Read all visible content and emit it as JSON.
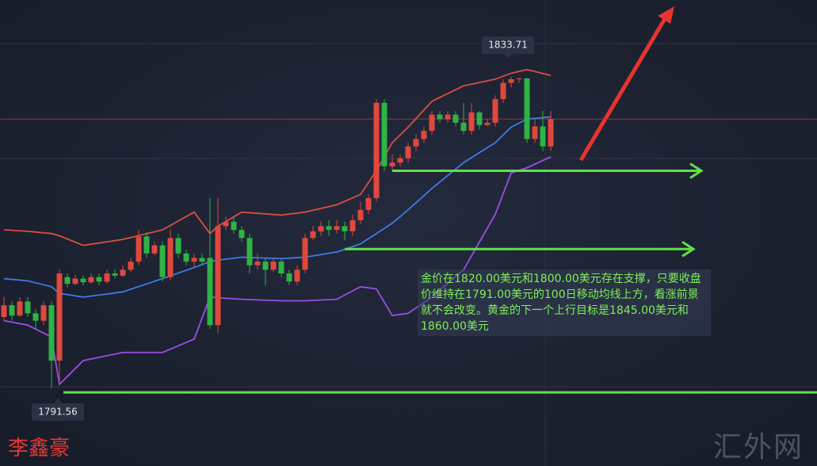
{
  "chart_data": {
    "type": "candlestick",
    "up_color": "#e0483e",
    "down_color": "#2fb344",
    "ylim": [
      1781.03,
      1844.12
    ],
    "open": [
      1801.2,
      1802.8,
      1801.4,
      1803.3,
      1801.7,
      1800.7,
      1802.8,
      1795.3,
      1806.6,
      1805.7,
      1806.4,
      1805.9,
      1806.6,
      1806.0,
      1807.1,
      1806.8,
      1807.6,
      1808.7,
      1812.1,
      1809.8,
      1810.9,
      1806.6,
      1811.9,
      1809.8,
      1808.7,
      1809.2,
      1809.2,
      1800.1,
      1813.5,
      1814.1,
      1813.0,
      1811.9,
      1808.2,
      1808.7,
      1807.6,
      1808.7,
      1807.1,
      1806.0,
      1807.6,
      1811.9,
      1812.8,
      1813.5,
      1813.0,
      1813.5,
      1812.8,
      1814.3,
      1815.7,
      1817.3,
      1830.2,
      1821.6,
      1822.1,
      1822.7,
      1824.3,
      1825.3,
      1826.4,
      1828.6,
      1828.0,
      1828.6,
      1827.5,
      1826.4,
      1828.9,
      1827.2,
      1827.5,
      1830.7,
      1832.9,
      1833.4,
      1833.5,
      1825.3,
      1827.0,
      1824.3
    ],
    "high": [
      1803.9,
      1803.3,
      1803.9,
      1803.9,
      1802.3,
      1803.3,
      1803.3,
      1807.6,
      1807.1,
      1806.9,
      1806.8,
      1807.1,
      1807.1,
      1807.6,
      1807.6,
      1808.2,
      1809.2,
      1813.0,
      1812.7,
      1811.4,
      1811.4,
      1813.0,
      1812.5,
      1810.3,
      1809.8,
      1809.8,
      1817.3,
      1817.3,
      1814.8,
      1814.8,
      1813.5,
      1812.5,
      1809.8,
      1809.2,
      1809.2,
      1809.2,
      1807.6,
      1808.2,
      1812.5,
      1813.5,
      1814.1,
      1814.3,
      1814.3,
      1814.1,
      1815.1,
      1816.8,
      1817.8,
      1830.7,
      1830.7,
      1823.2,
      1823.2,
      1824.8,
      1825.9,
      1827.0,
      1829.1,
      1829.1,
      1829.1,
      1829.1,
      1830.2,
      1830.2,
      1829.1,
      1828.0,
      1831.2,
      1833.4,
      1833.71,
      1833.6,
      1833.6,
      1828.0,
      1829.1,
      1829.1
    ],
    "low": [
      1800.7,
      1800.7,
      1801.2,
      1801.2,
      1799.6,
      1800.1,
      1791.56,
      1792.1,
      1805.2,
      1805.5,
      1805.5,
      1805.7,
      1805.5,
      1805.7,
      1806.4,
      1806.6,
      1807.3,
      1808.2,
      1809.2,
      1809.5,
      1806.0,
      1806.2,
      1809.2,
      1808.2,
      1808.0,
      1808.2,
      1799.6,
      1799.0,
      1813.0,
      1812.5,
      1811.4,
      1807.1,
      1807.6,
      1805.5,
      1807.3,
      1806.6,
      1805.5,
      1805.5,
      1807.1,
      1811.6,
      1812.2,
      1812.2,
      1812.5,
      1811.6,
      1812.2,
      1813.8,
      1815.1,
      1816.8,
      1821.0,
      1821.0,
      1821.6,
      1822.1,
      1823.7,
      1824.8,
      1825.9,
      1827.5,
      1827.5,
      1827.0,
      1825.9,
      1825.9,
      1826.6,
      1827.0,
      1827.0,
      1830.2,
      1832.3,
      1832.9,
      1824.8,
      1824.8,
      1823.7,
      1823.7
    ],
    "close": [
      1802.8,
      1801.4,
      1803.3,
      1801.7,
      1800.7,
      1802.8,
      1795.3,
      1807.1,
      1805.7,
      1806.4,
      1805.9,
      1806.6,
      1806.0,
      1807.1,
      1806.8,
      1807.6,
      1808.7,
      1812.1,
      1809.8,
      1810.9,
      1806.6,
      1811.9,
      1809.8,
      1808.7,
      1809.2,
      1808.7,
      1800.1,
      1813.5,
      1814.1,
      1813.0,
      1811.9,
      1808.2,
      1808.7,
      1807.6,
      1808.7,
      1807.1,
      1806.0,
      1807.6,
      1811.9,
      1812.8,
      1813.5,
      1813.0,
      1813.5,
      1812.8,
      1814.3,
      1815.7,
      1817.3,
      1830.2,
      1821.6,
      1822.1,
      1822.7,
      1824.3,
      1825.3,
      1826.4,
      1828.6,
      1828.0,
      1828.6,
      1827.5,
      1826.4,
      1828.9,
      1827.2,
      1827.5,
      1830.7,
      1832.9,
      1833.4,
      1833.5,
      1825.3,
      1827.0,
      1824.3,
      1828.0
    ],
    "overlays": {
      "x": [
        0,
        3,
        6,
        7,
        10,
        15,
        20,
        24,
        26,
        27,
        30,
        35,
        38,
        42,
        45,
        47,
        49,
        51,
        54,
        58,
        62,
        64,
        66,
        69
      ],
      "series": [
        {
          "color": "#d9503f",
          "values": [
            1813.0,
            1812.8,
            1812.5,
            1812.2,
            1810.9,
            1811.7,
            1813.0,
            1815.4,
            1812.5,
            1813.5,
            1815.4,
            1815.0,
            1815.4,
            1816.4,
            1817.8,
            1821.0,
            1824.8,
            1826.9,
            1830.4,
            1832.5,
            1833.4,
            1834.2,
            1834.7,
            1833.9
          ]
        },
        {
          "color": "#3d7be8",
          "values": [
            1806.4,
            1806.1,
            1805.3,
            1804.4,
            1803.9,
            1804.6,
            1806.4,
            1807.9,
            1808.7,
            1808.9,
            1809.3,
            1809.1,
            1809.3,
            1810.0,
            1811.1,
            1812.5,
            1813.9,
            1815.7,
            1818.6,
            1822.1,
            1824.8,
            1826.9,
            1828.0,
            1828.3
          ]
        },
        {
          "color": "#9a4de8",
          "values": [
            1800.7,
            1800.1,
            1798.5,
            1792.1,
            1795.3,
            1796.4,
            1796.4,
            1798.2,
            1803.9,
            1803.8,
            1803.6,
            1803.4,
            1803.4,
            1803.6,
            1805.3,
            1805.0,
            1801.4,
            1801.7,
            1803.9,
            1807.6,
            1815.1,
            1820.7,
            1821.4,
            1822.9
          ]
        }
      ]
    },
    "levels": {
      "color": "#5fe04a",
      "values": [
        1821.0,
        1810.4,
        1791.0
      ]
    },
    "note": "金价在1820.00美元和1800.00美元存在支撑，只要收盘价维持在1791.00美元的100日移动均线上方，看涨前景就不会改变。黄金的下一个上行目标是1845.00美元和1860.00美元",
    "author": "李鑫豪",
    "watermark": "汇外网"
  }
}
